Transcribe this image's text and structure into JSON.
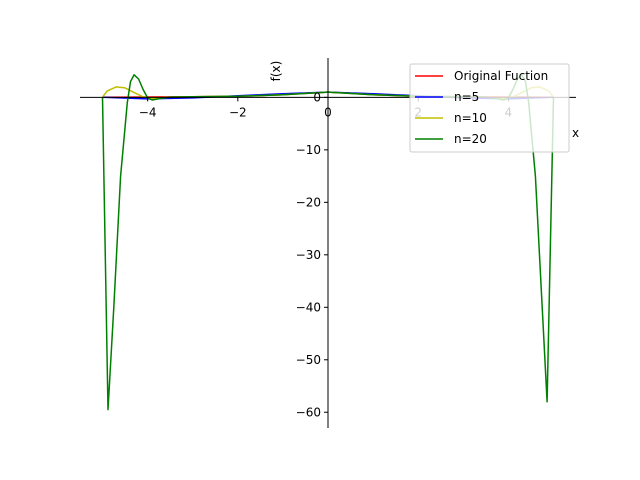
{
  "chart_data": {
    "type": "line",
    "xlabel": "x",
    "ylabel": "f(x)",
    "xlim": [
      -5.5,
      5.5
    ],
    "ylim": [
      -63,
      7.5
    ],
    "xticks": [
      -4,
      -2,
      0,
      2,
      4
    ],
    "xtick_labels": [
      "−4",
      "−2",
      "0",
      "2",
      "4"
    ],
    "yticks": [
      -60,
      -50,
      -40,
      -30,
      -20,
      -10,
      0
    ],
    "ytick_labels": [
      "−60",
      "−50",
      "−40",
      "−30",
      "−20",
      "−10",
      "0"
    ],
    "legend_position": "top-right",
    "series": [
      {
        "name": "Original Fuction",
        "color": "#ff0000",
        "x": [
          -5,
          -4,
          -3,
          -2,
          -1,
          -0.5,
          0,
          0.5,
          1,
          2,
          3,
          4,
          5
        ],
        "y": [
          0.04,
          0.06,
          0.1,
          0.2,
          0.5,
          0.8,
          1.0,
          0.8,
          0.5,
          0.2,
          0.1,
          0.06,
          0.04
        ]
      },
      {
        "name": "n=5",
        "color": "#0000ff",
        "x": [
          -5,
          -4,
          -3,
          -2,
          -1,
          0,
          1,
          2,
          3,
          4,
          5
        ],
        "y": [
          0.04,
          -0.3,
          -0.1,
          0.3,
          0.7,
          1.0,
          0.7,
          0.3,
          -0.1,
          -0.3,
          0.04
        ]
      },
      {
        "name": "n=10",
        "color": "#bfbf00",
        "x": [
          -5,
          -4.9,
          -4.7,
          -4.5,
          -4.3,
          -4.1,
          -3.9,
          -3.5,
          -3,
          -2,
          -1,
          0,
          1,
          2,
          3,
          3.5,
          3.9,
          4.1,
          4.3,
          4.5,
          4.7,
          4.9,
          5
        ],
        "y": [
          0.04,
          1.2,
          2.0,
          1.8,
          0.9,
          0.1,
          -0.2,
          0.05,
          0.1,
          0.2,
          0.5,
          1.0,
          0.5,
          0.2,
          0.1,
          0.05,
          -0.2,
          0.1,
          0.9,
          1.8,
          2.0,
          1.2,
          0.04
        ]
      },
      {
        "name": "n=20",
        "color": "#008000",
        "x": [
          -5,
          -4.88,
          -4.75,
          -4.6,
          -4.45,
          -4.38,
          -4.3,
          -4.2,
          -4.1,
          -4.0,
          -3.9,
          -3.7,
          -3.5,
          -3,
          -2,
          -1,
          0,
          1,
          2,
          3,
          3.5,
          3.7,
          3.9,
          4.0,
          4.1,
          4.2,
          4.3,
          4.38,
          4.45,
          4.6,
          4.75,
          4.86,
          5
        ],
        "y": [
          0.04,
          -59.5,
          -40,
          -15,
          -1,
          3,
          4.3,
          3.5,
          1.5,
          -0.1,
          -0.5,
          -0.2,
          0.05,
          0.1,
          0.2,
          0.5,
          1.0,
          0.5,
          0.2,
          0.1,
          0.05,
          -0.2,
          -0.5,
          -0.1,
          1.5,
          3.5,
          4.3,
          3,
          -1,
          -15,
          -40,
          -58,
          0.04
        ]
      }
    ]
  }
}
